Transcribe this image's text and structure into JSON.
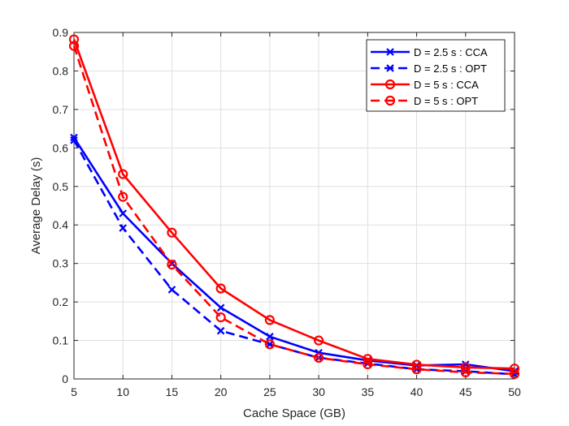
{
  "chart_data": {
    "type": "line",
    "title": "",
    "xlabel": "Cache Space (GB)",
    "ylabel": "Average Delay (s)",
    "xlim": [
      5,
      50
    ],
    "ylim": [
      0,
      0.9
    ],
    "xticks": [
      5,
      10,
      15,
      20,
      25,
      30,
      35,
      40,
      45,
      50
    ],
    "yticks": [
      0,
      0.1,
      0.2,
      0.3,
      0.4,
      0.5,
      0.6,
      0.7,
      0.8,
      0.9
    ],
    "grid": true,
    "legend_position": "top-right",
    "x": [
      5,
      10,
      15,
      20,
      25,
      30,
      35,
      40,
      45,
      50
    ],
    "series": [
      {
        "name": "D = 2.5 s : CCA",
        "color": "#0000FF",
        "dash": "solid",
        "marker": "x",
        "values": [
          0.627,
          0.43,
          0.3,
          0.185,
          0.11,
          0.068,
          0.048,
          0.035,
          0.038,
          0.02
        ]
      },
      {
        "name": "D = 2.5 s : OPT",
        "color": "#0000FF",
        "dash": "dashed",
        "marker": "x",
        "values": [
          0.62,
          0.392,
          0.232,
          0.125,
          0.09,
          0.055,
          0.04,
          0.025,
          0.02,
          0.012
        ]
      },
      {
        "name": "D = 5 s : CCA",
        "color": "#FF0000",
        "dash": "solid",
        "marker": "o",
        "values": [
          0.882,
          0.532,
          0.38,
          0.235,
          0.153,
          0.1,
          0.052,
          0.037,
          0.03,
          0.027
        ]
      },
      {
        "name": "D = 5 s : OPT",
        "color": "#FF0000",
        "dash": "dashed",
        "marker": "o",
        "values": [
          0.865,
          0.473,
          0.297,
          0.16,
          0.09,
          0.055,
          0.038,
          0.025,
          0.017,
          0.013
        ]
      }
    ]
  }
}
